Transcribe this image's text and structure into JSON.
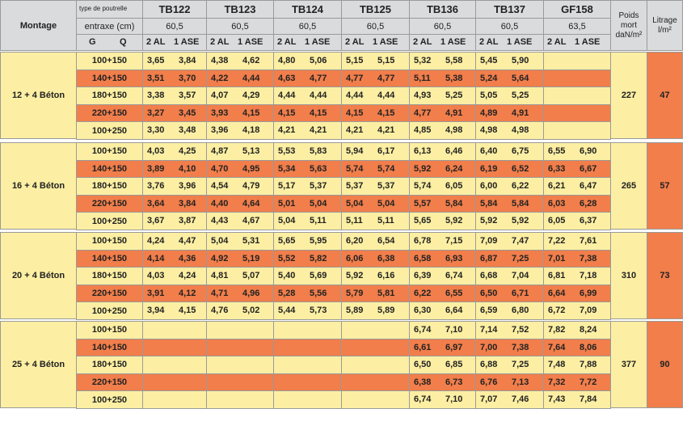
{
  "header": {
    "montage": "Montage",
    "type_label": "type de poutrelle",
    "entraxe_label": "entraxe (cm)",
    "g": "G",
    "q": "Q",
    "poids": "Poids mort daN/m²",
    "litrage": "Litrage l/m²",
    "sub_labels": [
      "2 AL",
      "1 ASE"
    ]
  },
  "columns": [
    {
      "name": "TB122",
      "entraxe": "60,5"
    },
    {
      "name": "TB123",
      "entraxe": "60,5"
    },
    {
      "name": "TB124",
      "entraxe": "60,5"
    },
    {
      "name": "TB125",
      "entraxe": "60,5"
    },
    {
      "name": "TB136",
      "entraxe": "60,5"
    },
    {
      "name": "TB137",
      "entraxe": "60,5"
    },
    {
      "name": "GF158",
      "entraxe": "63,5"
    }
  ],
  "groups": [
    {
      "montage": "12 + 4 Béton",
      "poids": 227,
      "litrage": 47,
      "rows": [
        {
          "load": "100+150",
          "values": [
            "3,65",
            "3,84",
            "4,38",
            "4,62",
            "4,80",
            "5,06",
            "5,15",
            "5,15",
            "5,32",
            "5,58",
            "5,45",
            "5,90",
            null,
            null
          ]
        },
        {
          "load": "140+150",
          "values": [
            "3,51",
            "3,70",
            "4,22",
            "4,44",
            "4,63",
            "4,77",
            "4,77",
            "4,77",
            "5,11",
            "5,38",
            "5,24",
            "5,64",
            null,
            null
          ]
        },
        {
          "load": "180+150",
          "values": [
            "3,38",
            "3,57",
            "4,07",
            "4,29",
            "4,44",
            "4,44",
            "4,44",
            "4,44",
            "4,93",
            "5,25",
            "5,05",
            "5,25",
            null,
            null
          ]
        },
        {
          "load": "220+150",
          "values": [
            "3,27",
            "3,45",
            "3,93",
            "4,15",
            "4,15",
            "4,15",
            "4,15",
            "4,15",
            "4,77",
            "4,91",
            "4,89",
            "4,91",
            null,
            null
          ]
        },
        {
          "load": "100+250",
          "values": [
            "3,30",
            "3,48",
            "3,96",
            "4,18",
            "4,21",
            "4,21",
            "4,21",
            "4,21",
            "4,85",
            "4,98",
            "4,98",
            "4,98",
            null,
            null
          ]
        }
      ]
    },
    {
      "montage": "16 + 4 Béton",
      "poids": 265,
      "litrage": 57,
      "rows": [
        {
          "load": "100+150",
          "values": [
            "4,03",
            "4,25",
            "4,87",
            "5,13",
            "5,53",
            "5,83",
            "5,94",
            "6,17",
            "6,13",
            "6,46",
            "6,40",
            "6,75",
            "6,55",
            "6,90"
          ]
        },
        {
          "load": "140+150",
          "values": [
            "3,89",
            "4,10",
            "4,70",
            "4,95",
            "5,34",
            "5,63",
            "5,74",
            "5,74",
            "5,92",
            "6,24",
            "6,19",
            "6,52",
            "6,33",
            "6,67"
          ]
        },
        {
          "load": "180+150",
          "values": [
            "3,76",
            "3,96",
            "4,54",
            "4,79",
            "5,17",
            "5,37",
            "5,37",
            "5,37",
            "5,74",
            "6,05",
            "6,00",
            "6,22",
            "6,21",
            "6,47"
          ]
        },
        {
          "load": "220+150",
          "values": [
            "3,64",
            "3,84",
            "4,40",
            "4,64",
            "5,01",
            "5,04",
            "5,04",
            "5,04",
            "5,57",
            "5,84",
            "5,84",
            "5,84",
            "6,03",
            "6,28"
          ]
        },
        {
          "load": "100+250",
          "values": [
            "3,67",
            "3,87",
            "4,43",
            "4,67",
            "5,04",
            "5,11",
            "5,11",
            "5,11",
            "5,65",
            "5,92",
            "5,92",
            "5,92",
            "6,05",
            "6,37"
          ]
        }
      ]
    },
    {
      "montage": "20 + 4 Béton",
      "poids": 310,
      "litrage": 73,
      "rows": [
        {
          "load": "100+150",
          "values": [
            "4,24",
            "4,47",
            "5,04",
            "5,31",
            "5,65",
            "5,95",
            "6,20",
            "6,54",
            "6,78",
            "7,15",
            "7,09",
            "7,47",
            "7,22",
            "7,61"
          ]
        },
        {
          "load": "140+150",
          "values": [
            "4,14",
            "4,36",
            "4,92",
            "5,19",
            "5,52",
            "5,82",
            "6,06",
            "6,38",
            "6,58",
            "6,93",
            "6,87",
            "7,25",
            "7,01",
            "7,38"
          ]
        },
        {
          "load": "180+150",
          "values": [
            "4,03",
            "4,24",
            "4,81",
            "5,07",
            "5,40",
            "5,69",
            "5,92",
            "6,16",
            "6,39",
            "6,74",
            "6,68",
            "7,04",
            "6,81",
            "7,18"
          ]
        },
        {
          "load": "220+150",
          "values": [
            "3,91",
            "4,12",
            "4,71",
            "4,96",
            "5,28",
            "5,56",
            "5,79",
            "5,81",
            "6,22",
            "6,55",
            "6,50",
            "6,71",
            "6,64",
            "6,99"
          ]
        },
        {
          "load": "100+250",
          "values": [
            "3,94",
            "4,15",
            "4,76",
            "5,02",
            "5,44",
            "5,73",
            "5,89",
            "5,89",
            "6,30",
            "6,64",
            "6,59",
            "6,80",
            "6,72",
            "7,09"
          ]
        }
      ]
    },
    {
      "montage": "25 + 4 Béton",
      "poids": 377,
      "litrage": 90,
      "rows": [
        {
          "load": "100+150",
          "values": [
            null,
            null,
            null,
            null,
            null,
            null,
            null,
            null,
            "6,74",
            "7,10",
            "7,14",
            "7,52",
            "7,82",
            "8,24"
          ]
        },
        {
          "load": "140+150",
          "values": [
            null,
            null,
            null,
            null,
            null,
            null,
            null,
            null,
            "6,61",
            "6,97",
            "7,00",
            "7,38",
            "7,64",
            "8,06"
          ]
        },
        {
          "load": "180+150",
          "values": [
            null,
            null,
            null,
            null,
            null,
            null,
            null,
            null,
            "6,50",
            "6,85",
            "6,88",
            "7,25",
            "7,48",
            "7,88"
          ]
        },
        {
          "load": "220+150",
          "values": [
            null,
            null,
            null,
            null,
            null,
            null,
            null,
            null,
            "6,38",
            "6,73",
            "6,76",
            "7,13",
            "7,32",
            "7,72"
          ]
        },
        {
          "load": "100+250",
          "values": [
            null,
            null,
            null,
            null,
            null,
            null,
            null,
            null,
            "6,74",
            "7,10",
            "7,07",
            "7,46",
            "7,43",
            "7,84"
          ]
        }
      ]
    }
  ]
}
